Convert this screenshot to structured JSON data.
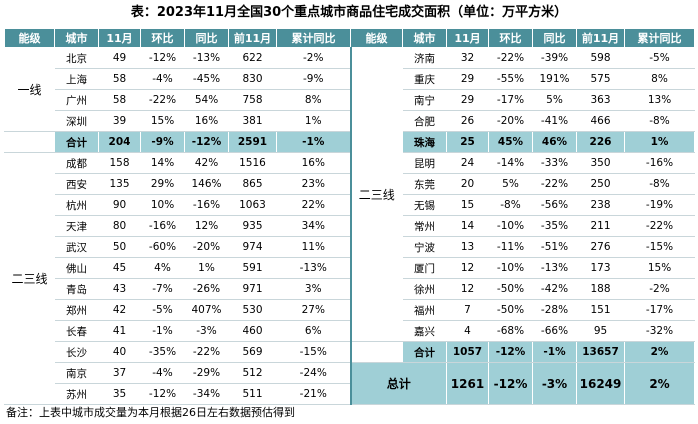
{
  "title": "表：2023年11月全国30个重点城市商品住宅成交面积（单位：万平方米）",
  "headers": [
    "能级",
    "城市",
    "11月",
    "环比",
    "同比",
    "前11月",
    "累计同比",
    "能级",
    "城市",
    "11月",
    "环比",
    "同比",
    "前11月",
    "累计同比"
  ],
  "left": {
    "tier1_label": "一线",
    "tier1_rows": [
      [
        "北京",
        "49",
        "-12%",
        "-13%",
        "622",
        "-2%"
      ],
      [
        "上海",
        "58",
        "-4%",
        "-45%",
        "830",
        "-9%"
      ],
      [
        "广州",
        "58",
        "-22%",
        "54%",
        "758",
        "8%"
      ],
      [
        "深圳",
        "39",
        "15%",
        "16%",
        "381",
        "1%"
      ]
    ],
    "tier1_sum": [
      "合计",
      "204",
      "-9%",
      "-12%",
      "2591",
      "-1%"
    ],
    "tier2_label": "二三线",
    "tier2_rows": [
      [
        "成都",
        "158",
        "14%",
        "42%",
        "1516",
        "16%"
      ],
      [
        "西安",
        "135",
        "29%",
        "146%",
        "865",
        "23%"
      ],
      [
        "杭州",
        "90",
        "10%",
        "-16%",
        "1063",
        "22%"
      ],
      [
        "天津",
        "80",
        "-16%",
        "12%",
        "935",
        "34%"
      ],
      [
        "武汉",
        "50",
        "-60%",
        "-20%",
        "974",
        "11%"
      ],
      [
        "佛山",
        "45",
        "4%",
        "1%",
        "591",
        "-13%"
      ],
      [
        "青岛",
        "43",
        "-7%",
        "-26%",
        "971",
        "3%"
      ],
      [
        "郑州",
        "42",
        "-5%",
        "407%",
        "530",
        "27%"
      ],
      [
        "长春",
        "41",
        "-1%",
        "-3%",
        "460",
        "6%"
      ],
      [
        "长沙",
        "40",
        "-35%",
        "-22%",
        "569",
        "-15%"
      ],
      [
        "南京",
        "37",
        "-4%",
        "-29%",
        "512",
        "-24%"
      ],
      [
        "苏州",
        "35",
        "-12%",
        "-34%",
        "511",
        "-21%"
      ]
    ]
  },
  "right": {
    "tier_label": "二三线",
    "rows": [
      [
        "济南",
        "32",
        "-22%",
        "-39%",
        "598",
        "-5%"
      ],
      [
        "重庆",
        "29",
        "-55%",
        "191%",
        "575",
        "8%"
      ],
      [
        "南宁",
        "29",
        "-17%",
        "5%",
        "363",
        "13%"
      ],
      [
        "合肥",
        "26",
        "-20%",
        "-41%",
        "466",
        "-8%"
      ],
      [
        "珠海",
        "25",
        "45%",
        "46%",
        "226",
        "1%"
      ],
      [
        "昆明",
        "24",
        "-14%",
        "-33%",
        "350",
        "-16%"
      ],
      [
        "东莞",
        "20",
        "5%",
        "-22%",
        "250",
        "-8%"
      ],
      [
        "无锡",
        "15",
        "-8%",
        "-56%",
        "238",
        "-19%"
      ],
      [
        "常州",
        "14",
        "-10%",
        "-35%",
        "211",
        "-22%"
      ],
      [
        "宁波",
        "13",
        "-11%",
        "-51%",
        "276",
        "-15%"
      ],
      [
        "厦门",
        "12",
        "-10%",
        "-13%",
        "173",
        "15%"
      ],
      [
        "徐州",
        "12",
        "-50%",
        "-42%",
        "188",
        "-2%"
      ],
      [
        "福州",
        "7",
        "-50%",
        "-28%",
        "151",
        "-17%"
      ],
      [
        "嘉兴",
        "4",
        "-68%",
        "-66%",
        "95",
        "-32%"
      ]
    ],
    "sum": [
      "合计",
      "1057",
      "-12%",
      "-1%",
      "13657",
      "2%"
    ],
    "total": [
      "总计",
      "1261",
      "-12%",
      "-3%",
      "16249",
      "2%"
    ]
  },
  "note": "备注：上表中城市成交量为本月根据26日左右数据预估得到",
  "colors": {
    "header_bg": "#4b8f9a",
    "sum_bg": "#9fcfd6"
  }
}
